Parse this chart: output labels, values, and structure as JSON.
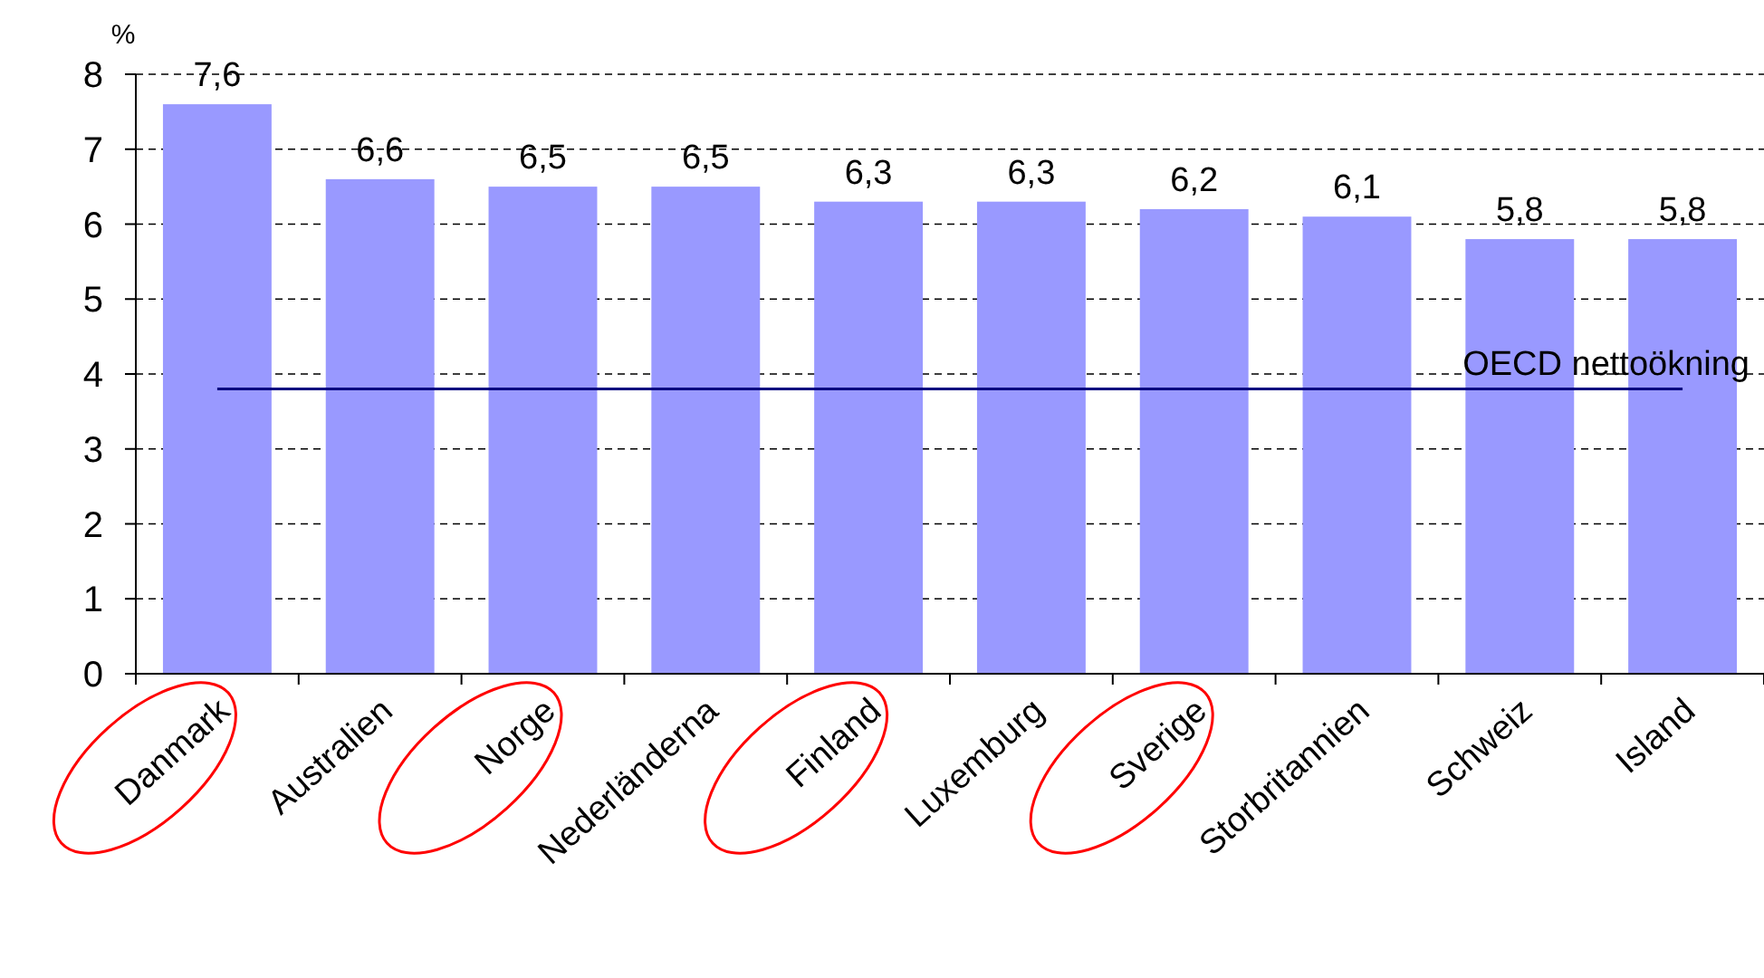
{
  "chart_data": {
    "type": "bar",
    "ylabel": "%",
    "categories": [
      "Danmark",
      "Australien",
      "Norge",
      "Nederländerna",
      "Finland",
      "Luxemburg",
      "Sverige",
      "Storbritannien",
      "Schweiz",
      "Island"
    ],
    "values": [
      7.6,
      6.6,
      6.5,
      6.5,
      6.3,
      6.3,
      6.2,
      6.1,
      5.8,
      5.8
    ],
    "value_labels": [
      "7,6",
      "6,6",
      "6,5",
      "6,5",
      "6,3",
      "6,3",
      "6,2",
      "6,1",
      "5,8",
      "5,8"
    ],
    "color": "#9999ff",
    "ylim": [
      0,
      8
    ],
    "yticks": [
      0,
      1,
      2,
      3,
      4,
      5,
      6,
      7,
      8
    ],
    "grid": "y",
    "ref_lines": [
      {
        "axis": "y",
        "value": 3.8,
        "label": "OECD nettoökning",
        "color": "#000080"
      }
    ]
  }
}
